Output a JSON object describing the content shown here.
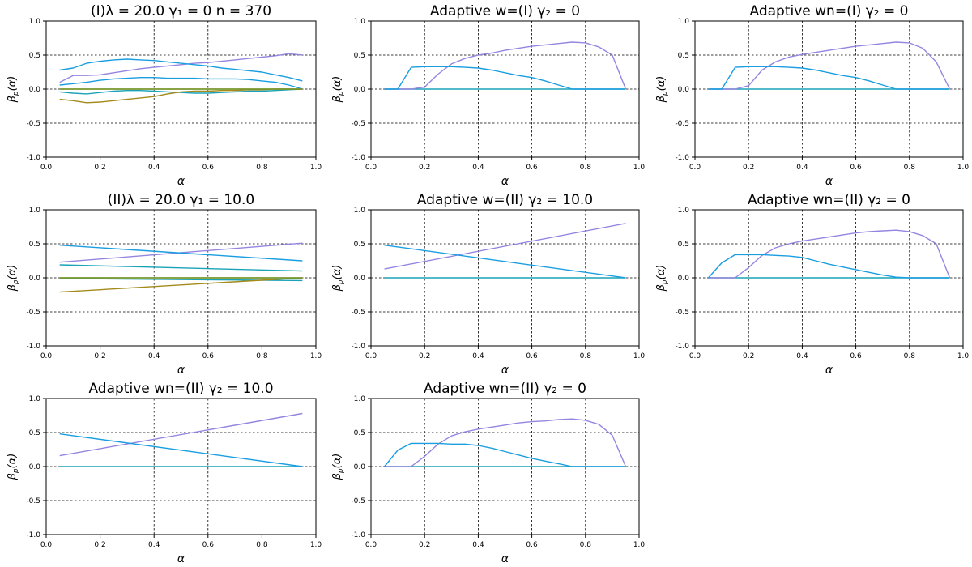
{
  "chart_data": [
    {
      "type": "line",
      "title": "(I)λ = 20.0   γ₁ = 0   n = 370",
      "xlabel": "α",
      "ylabel": "β_p(α)",
      "xlim": [
        0,
        1
      ],
      "ylim": [
        -1,
        1
      ],
      "x_ticks": [
        "0.0",
        "0.2",
        "0.4",
        "0.6",
        "0.8",
        "1.0"
      ],
      "y_ticks": [
        "-1.0",
        "-0.5",
        "0.0",
        "0.5",
        "1.0"
      ],
      "grid": true,
      "series": [
        {
          "color": "#9585e0",
          "x": [
            0.05,
            0.1,
            0.15,
            0.2,
            0.25,
            0.3,
            0.35,
            0.4,
            0.45,
            0.5,
            0.55,
            0.6,
            0.65,
            0.7,
            0.75,
            0.8,
            0.85,
            0.9,
            0.95
          ],
          "y": [
            0.1,
            0.2,
            0.2,
            0.21,
            0.24,
            0.27,
            0.3,
            0.32,
            0.34,
            0.36,
            0.38,
            0.39,
            0.41,
            0.43,
            0.45,
            0.47,
            0.49,
            0.52,
            0.5
          ]
        },
        {
          "color": "#1a9ee0",
          "x": [
            0.05,
            0.1,
            0.15,
            0.2,
            0.25,
            0.3,
            0.35,
            0.4,
            0.45,
            0.5,
            0.55,
            0.6,
            0.65,
            0.7,
            0.75,
            0.8,
            0.85,
            0.9,
            0.95
          ],
          "y": [
            0.28,
            0.31,
            0.38,
            0.41,
            0.43,
            0.44,
            0.43,
            0.42,
            0.4,
            0.38,
            0.36,
            0.34,
            0.31,
            0.29,
            0.27,
            0.25,
            0.21,
            0.17,
            0.12
          ]
        },
        {
          "color": "#1a9ee0",
          "x": [
            0.05,
            0.1,
            0.15,
            0.2,
            0.25,
            0.3,
            0.35,
            0.4,
            0.45,
            0.5,
            0.55,
            0.6,
            0.65,
            0.7,
            0.75,
            0.8,
            0.85,
            0.9,
            0.95
          ],
          "y": [
            0.06,
            0.08,
            0.1,
            0.13,
            0.15,
            0.16,
            0.17,
            0.17,
            0.16,
            0.16,
            0.16,
            0.15,
            0.15,
            0.15,
            0.14,
            0.12,
            0.1,
            0.06,
            0.0
          ]
        },
        {
          "color": "#1aa3b8",
          "x": [
            0.05,
            0.1,
            0.15,
            0.2,
            0.25,
            0.3,
            0.35,
            0.4,
            0.45,
            0.5,
            0.55,
            0.6,
            0.65,
            0.7,
            0.75,
            0.8,
            0.85,
            0.9,
            0.95
          ],
          "y": [
            -0.04,
            -0.06,
            -0.07,
            -0.05,
            -0.03,
            -0.02,
            -0.02,
            -0.03,
            -0.04,
            -0.05,
            -0.06,
            -0.06,
            -0.05,
            -0.04,
            -0.03,
            -0.03,
            -0.02,
            -0.01,
            0.0
          ]
        },
        {
          "color": "#a38a1a",
          "x": [
            0.05,
            0.1,
            0.15,
            0.2,
            0.25,
            0.3,
            0.35,
            0.4,
            0.45,
            0.5,
            0.55,
            0.6,
            0.65,
            0.7,
            0.75,
            0.8,
            0.85,
            0.9,
            0.95
          ],
          "y": [
            -0.15,
            -0.17,
            -0.2,
            -0.19,
            -0.17,
            -0.15,
            -0.13,
            -0.11,
            -0.07,
            -0.04,
            -0.03,
            -0.03,
            -0.02,
            -0.02,
            -0.01,
            -0.01,
            0.0,
            0.0,
            0.0
          ]
        },
        {
          "color": "#c8843a",
          "x": [
            0.05,
            0.95
          ],
          "y": [
            0.0,
            0.0
          ]
        },
        {
          "color": "#6a9a2a",
          "x": [
            0.05,
            0.95
          ],
          "y": [
            0.0,
            0.0
          ]
        }
      ]
    },
    {
      "type": "line",
      "title": "Adaptive w=(I) γ₂ = 0",
      "xlabel": "α",
      "ylabel": "β_p(α)",
      "xlim": [
        0,
        1
      ],
      "ylim": [
        -1,
        1
      ],
      "x_ticks": [
        "0.0",
        "0.2",
        "0.4",
        "0.6",
        "0.8",
        "1.0"
      ],
      "y_ticks": [
        "-1.0",
        "-0.5",
        "0.0",
        "0.5",
        "1.0"
      ],
      "grid": true,
      "series": [
        {
          "color": "#1aa3b8",
          "x": [
            0.05,
            0.95
          ],
          "y": [
            0.0,
            0.0
          ]
        },
        {
          "color": "#9585e0",
          "x": [
            0.05,
            0.1,
            0.15,
            0.2,
            0.25,
            0.3,
            0.35,
            0.4,
            0.45,
            0.5,
            0.55,
            0.6,
            0.65,
            0.7,
            0.75,
            0.8,
            0.85,
            0.9,
            0.95
          ],
          "y": [
            0.0,
            0.0,
            0.0,
            0.03,
            0.22,
            0.37,
            0.45,
            0.5,
            0.53,
            0.57,
            0.6,
            0.63,
            0.65,
            0.67,
            0.69,
            0.68,
            0.62,
            0.5,
            0.0
          ]
        },
        {
          "color": "#1a9ee0",
          "x": [
            0.05,
            0.1,
            0.15,
            0.2,
            0.25,
            0.3,
            0.35,
            0.4,
            0.45,
            0.5,
            0.55,
            0.6,
            0.65,
            0.7,
            0.75,
            0.8,
            0.85,
            0.9,
            0.95
          ],
          "y": [
            0.0,
            0.0,
            0.32,
            0.33,
            0.33,
            0.33,
            0.32,
            0.31,
            0.28,
            0.24,
            0.2,
            0.17,
            0.12,
            0.06,
            0.0,
            0.0,
            0.0,
            0.0,
            0.0
          ]
        }
      ]
    },
    {
      "type": "line",
      "title": "Adaptive wn=(I) γ₂ = 0",
      "xlabel": "α",
      "ylabel": "β_p(α)",
      "xlim": [
        0,
        1
      ],
      "ylim": [
        -1,
        1
      ],
      "x_ticks": [
        "0.0",
        "0.2",
        "0.4",
        "0.6",
        "0.8",
        "1.0"
      ],
      "y_ticks": [
        "-1.0",
        "-0.5",
        "0.0",
        "0.5",
        "1.0"
      ],
      "grid": true,
      "series": [
        {
          "color": "#1aa3b8",
          "x": [
            0.05,
            0.95
          ],
          "y": [
            0.0,
            0.0
          ]
        },
        {
          "color": "#9585e0",
          "x": [
            0.05,
            0.1,
            0.15,
            0.2,
            0.25,
            0.3,
            0.35,
            0.4,
            0.45,
            0.5,
            0.55,
            0.6,
            0.65,
            0.7,
            0.75,
            0.8,
            0.85,
            0.9,
            0.95
          ],
          "y": [
            0.0,
            0.0,
            0.0,
            0.05,
            0.28,
            0.4,
            0.47,
            0.51,
            0.54,
            0.57,
            0.6,
            0.63,
            0.65,
            0.67,
            0.69,
            0.68,
            0.6,
            0.4,
            0.0
          ]
        },
        {
          "color": "#1a9ee0",
          "x": [
            0.05,
            0.1,
            0.15,
            0.2,
            0.25,
            0.3,
            0.35,
            0.4,
            0.45,
            0.5,
            0.55,
            0.6,
            0.65,
            0.7,
            0.75,
            0.8,
            0.85,
            0.9,
            0.95
          ],
          "y": [
            0.0,
            0.0,
            0.32,
            0.33,
            0.33,
            0.33,
            0.32,
            0.31,
            0.28,
            0.24,
            0.2,
            0.17,
            0.12,
            0.06,
            0.0,
            0.0,
            0.0,
            0.0,
            0.0
          ]
        }
      ]
    },
    {
      "type": "line",
      "title": "(II)λ = 20.0   γ₁ = 10.0",
      "xlabel": "α",
      "ylabel": "β_p(α)",
      "xlim": [
        0,
        1
      ],
      "ylim": [
        -1,
        1
      ],
      "x_ticks": [
        "0.0",
        "0.2",
        "0.4",
        "0.6",
        "0.8",
        "1.0"
      ],
      "y_ticks": [
        "-1.0",
        "-0.5",
        "0.0",
        "0.5",
        "1.0"
      ],
      "grid": true,
      "series": [
        {
          "color": "#9585e0",
          "x": [
            0.05,
            0.95
          ],
          "y": [
            0.23,
            0.51
          ]
        },
        {
          "color": "#1a9ee0",
          "x": [
            0.05,
            0.95
          ],
          "y": [
            0.48,
            0.25
          ]
        },
        {
          "color": "#1aa3b8",
          "x": [
            0.05,
            0.95
          ],
          "y": [
            0.19,
            0.1
          ]
        },
        {
          "color": "#1aa3b8",
          "x": [
            0.05,
            0.95
          ],
          "y": [
            -0.01,
            -0.04
          ]
        },
        {
          "color": "#a38a1a",
          "x": [
            0.05,
            0.95
          ],
          "y": [
            -0.21,
            0.0
          ]
        },
        {
          "color": "#c8843a",
          "x": [
            0.05,
            0.95
          ],
          "y": [
            0.0,
            0.0
          ]
        },
        {
          "color": "#6a9a2a",
          "x": [
            0.05,
            0.95
          ],
          "y": [
            0.0,
            0.0
          ]
        }
      ]
    },
    {
      "type": "line",
      "title": "Adaptive w=(II) γ₂ = 10.0",
      "xlabel": "α",
      "ylabel": "β_p(α)",
      "xlim": [
        0,
        1
      ],
      "ylim": [
        -1,
        1
      ],
      "x_ticks": [
        "0.0",
        "0.2",
        "0.4",
        "0.6",
        "0.8",
        "1.0"
      ],
      "y_ticks": [
        "-1.0",
        "-0.5",
        "0.0",
        "0.5",
        "1.0"
      ],
      "grid": true,
      "series": [
        {
          "color": "#1aa3b8",
          "x": [
            0.05,
            0.95
          ],
          "y": [
            0.0,
            0.0
          ]
        },
        {
          "color": "#9585e0",
          "x": [
            0.05,
            0.95
          ],
          "y": [
            0.13,
            0.8
          ]
        },
        {
          "color": "#1a9ee0",
          "x": [
            0.05,
            0.95
          ],
          "y": [
            0.48,
            0.0
          ]
        }
      ]
    },
    {
      "type": "line",
      "title": "Adaptive wn=(II) γ₂ = 0",
      "xlabel": "α",
      "ylabel": "β_p(α)",
      "xlim": [
        0,
        1
      ],
      "ylim": [
        -1,
        1
      ],
      "x_ticks": [
        "0.0",
        "0.2",
        "0.4",
        "0.6",
        "0.8",
        "1.0"
      ],
      "y_ticks": [
        "-1.0",
        "-0.5",
        "0.0",
        "0.5",
        "1.0"
      ],
      "grid": true,
      "series": [
        {
          "color": "#1aa3b8",
          "x": [
            0.05,
            0.95
          ],
          "y": [
            0.0,
            0.0
          ]
        },
        {
          "color": "#9585e0",
          "x": [
            0.05,
            0.1,
            0.15,
            0.2,
            0.25,
            0.3,
            0.35,
            0.4,
            0.45,
            0.5,
            0.55,
            0.6,
            0.65,
            0.7,
            0.75,
            0.8,
            0.85,
            0.9,
            0.95
          ],
          "y": [
            0.0,
            0.0,
            0.0,
            0.15,
            0.33,
            0.44,
            0.5,
            0.54,
            0.57,
            0.6,
            0.63,
            0.66,
            0.68,
            0.69,
            0.7,
            0.68,
            0.62,
            0.5,
            0.0
          ]
        },
        {
          "color": "#1a9ee0",
          "x": [
            0.05,
            0.1,
            0.15,
            0.2,
            0.25,
            0.3,
            0.35,
            0.4,
            0.45,
            0.5,
            0.55,
            0.6,
            0.65,
            0.7,
            0.75,
            0.8,
            0.85,
            0.9,
            0.95
          ],
          "y": [
            0.0,
            0.22,
            0.34,
            0.34,
            0.34,
            0.33,
            0.32,
            0.3,
            0.25,
            0.2,
            0.16,
            0.12,
            0.08,
            0.04,
            0.01,
            0.0,
            0.0,
            0.0,
            0.0
          ]
        }
      ]
    },
    {
      "type": "line",
      "title": "Adaptive wn=(II) γ₂ = 10.0",
      "xlabel": "α",
      "ylabel": "β_p(α)",
      "xlim": [
        0,
        1
      ],
      "ylim": [
        -1,
        1
      ],
      "x_ticks": [
        "0.0",
        "0.2",
        "0.4",
        "0.6",
        "0.8",
        "1.0"
      ],
      "y_ticks": [
        "-1.0",
        "-0.5",
        "0.0",
        "0.5",
        "1.0"
      ],
      "grid": true,
      "series": [
        {
          "color": "#1aa3b8",
          "x": [
            0.05,
            0.95
          ],
          "y": [
            0.0,
            0.0
          ]
        },
        {
          "color": "#9585e0",
          "x": [
            0.05,
            0.95
          ],
          "y": [
            0.16,
            0.78
          ]
        },
        {
          "color": "#1a9ee0",
          "x": [
            0.05,
            0.95
          ],
          "y": [
            0.48,
            0.0
          ]
        }
      ]
    },
    {
      "type": "line",
      "title": "Adaptive wn=(II) γ₂ = 0",
      "xlabel": "α",
      "ylabel": "β_p(α)",
      "xlim": [
        0,
        1
      ],
      "ylim": [
        -1,
        1
      ],
      "x_ticks": [
        "0.0",
        "0.2",
        "0.4",
        "0.6",
        "0.8",
        "1.0"
      ],
      "y_ticks": [
        "-1.0",
        "-0.5",
        "0.0",
        "0.5",
        "1.0"
      ],
      "grid": true,
      "series": [
        {
          "color": "#1aa3b8",
          "x": [
            0.05,
            0.95
          ],
          "y": [
            0.0,
            0.0
          ]
        },
        {
          "color": "#9585e0",
          "x": [
            0.05,
            0.1,
            0.15,
            0.2,
            0.25,
            0.3,
            0.35,
            0.4,
            0.45,
            0.5,
            0.55,
            0.6,
            0.65,
            0.7,
            0.75,
            0.8,
            0.85,
            0.9,
            0.95
          ],
          "y": [
            0.0,
            0.0,
            0.0,
            0.15,
            0.33,
            0.45,
            0.51,
            0.55,
            0.58,
            0.61,
            0.64,
            0.66,
            0.67,
            0.69,
            0.7,
            0.68,
            0.62,
            0.46,
            0.0
          ]
        },
        {
          "color": "#1a9ee0",
          "x": [
            0.05,
            0.1,
            0.15,
            0.2,
            0.25,
            0.3,
            0.35,
            0.4,
            0.45,
            0.5,
            0.55,
            0.6,
            0.65,
            0.7,
            0.75,
            0.8,
            0.85,
            0.9,
            0.95
          ],
          "y": [
            0.0,
            0.24,
            0.34,
            0.34,
            0.34,
            0.33,
            0.33,
            0.31,
            0.27,
            0.22,
            0.17,
            0.12,
            0.08,
            0.04,
            0.0,
            0.0,
            0.0,
            0.0,
            0.0
          ]
        }
      ]
    }
  ]
}
